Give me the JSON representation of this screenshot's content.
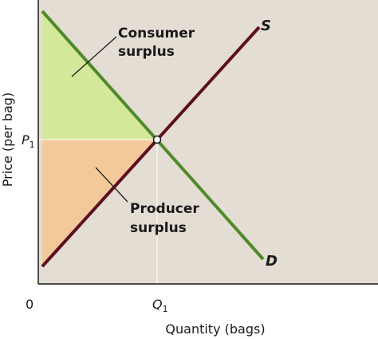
{
  "diagram": {
    "labels": {
      "consumer_surplus_line1": "Consumer",
      "consumer_surplus_line2": "surplus",
      "producer_surplus_line1": "Producer",
      "producer_surplus_line2": "surplus",
      "supply": "S",
      "demand": "D",
      "price_symbol": "P",
      "price_subscript": "1",
      "quantity_symbol": "Q",
      "quantity_subscript": "1",
      "origin": "0",
      "y_axis_label": "Price (per bag)",
      "x_axis_label": "Quantity (bags)"
    },
    "colors": {
      "plot_background": "#e4ddd3",
      "consumer_surplus_fill": "#d3e89a",
      "producer_surplus_fill": "#f3c99a",
      "supply_line": "#5c0f1f",
      "demand_line": "#4f8a2a",
      "axis": "#1a1a1a"
    }
  }
}
